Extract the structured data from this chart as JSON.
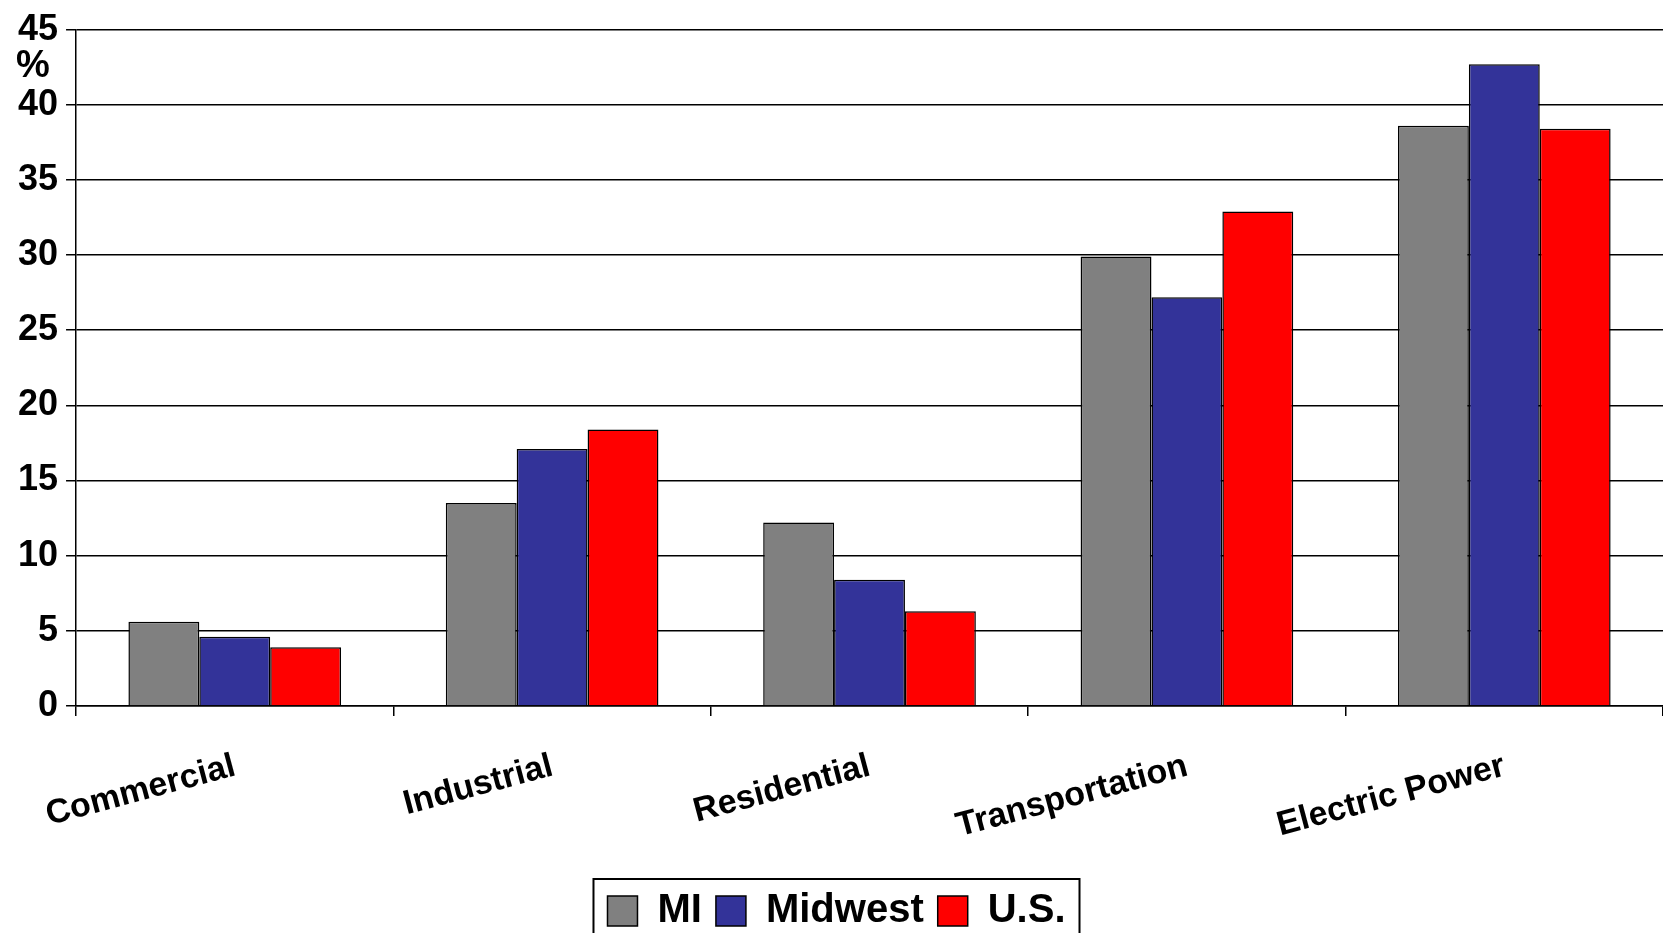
{
  "chart_data": {
    "type": "bar",
    "ylabel": "%",
    "categories": [
      "Commercial",
      "Industrial",
      "Residential",
      "Transportation",
      "Electric Power"
    ],
    "series": [
      {
        "name": "MI",
        "color": "#808080",
        "values": [
          5.6,
          13.5,
          12.2,
          29.9,
          38.6
        ]
      },
      {
        "name": "Midwest",
        "color": "#333399",
        "values": [
          4.6,
          17.1,
          8.4,
          27.2,
          42.7
        ]
      },
      {
        "name": "U.S.",
        "color": "#ff0000",
        "values": [
          3.9,
          18.4,
          6.3,
          32.9,
          38.4
        ]
      }
    ],
    "ylim": [
      0,
      45
    ],
    "yticks": [
      0,
      5,
      10,
      15,
      20,
      25,
      30,
      35,
      40,
      45
    ],
    "grid": "y",
    "legend": "bottom"
  }
}
